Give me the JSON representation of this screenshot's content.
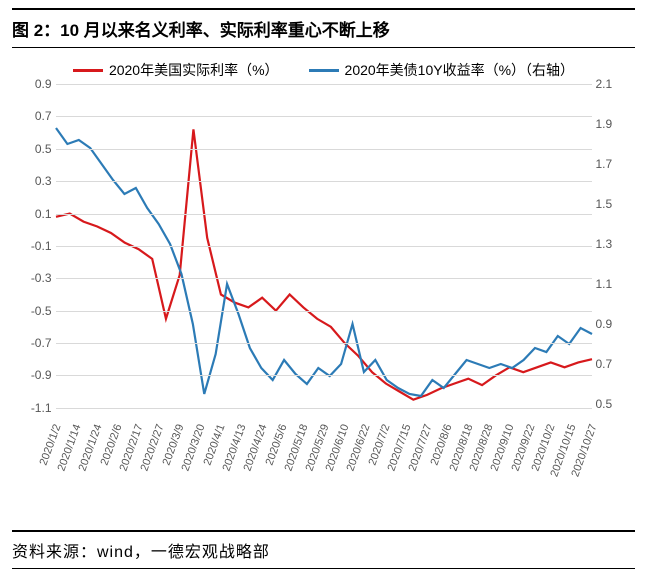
{
  "title": "图 2：10 月以来名义利率、实际利率重心不断上移",
  "source": "资料来源：wind，一德宏观战略部",
  "legend": {
    "series1": {
      "label": "2020年美国实际利率（%）",
      "color": "#d7191c"
    },
    "series2": {
      "label": "2020年美债10Y收益率（%）（右轴）",
      "color": "#2c7bb6"
    }
  },
  "chart": {
    "type": "line",
    "background_color": "#ffffff",
    "grid_color": "#d9d9d9",
    "line_width": 2.2,
    "title_fontsize": 17,
    "label_fontsize": 12,
    "xlabel_rotation": -70,
    "y_left": {
      "min": -1.2,
      "max": 0.9,
      "ticks": [
        -1.1,
        -0.9,
        -0.7,
        -0.5,
        -0.3,
        -0.1,
        0.1,
        0.3,
        0.5,
        0.7,
        0.9
      ]
    },
    "y_right": {
      "min": 0.4,
      "max": 2.1,
      "ticks": [
        0.5,
        0.7,
        0.9,
        1.1,
        1.3,
        1.5,
        1.7,
        1.9,
        2.1
      ]
    },
    "x_labels": [
      "2020/1/2",
      "2020/1/14",
      "2020/1/24",
      "2020/2/6",
      "2020/2/17",
      "2020/2/27",
      "2020/3/9",
      "2020/3/20",
      "2020/4/1",
      "2020/4/13",
      "2020/4/24",
      "2020/5/6",
      "2020/5/18",
      "2020/5/29",
      "2020/6/10",
      "2020/6/22",
      "2020/7/2",
      "2020/7/15",
      "2020/7/27",
      "2020/8/6",
      "2020/8/18",
      "2020/8/28",
      "2020/9/10",
      "2020/9/22",
      "2020/10/2",
      "2020/10/15",
      "2020/10/27"
    ],
    "series1_data": [
      0.08,
      0.1,
      0.05,
      0.02,
      -0.02,
      -0.08,
      -0.12,
      -0.18,
      -0.55,
      -0.28,
      0.62,
      -0.05,
      -0.4,
      -0.45,
      -0.48,
      -0.42,
      -0.5,
      -0.4,
      -0.48,
      -0.55,
      -0.6,
      -0.7,
      -0.78,
      -0.88,
      -0.95,
      -1.0,
      -1.05,
      -1.02,
      -0.98,
      -0.95,
      -0.92,
      -0.96,
      -0.9,
      -0.85,
      -0.88,
      -0.85,
      -0.82,
      -0.85,
      -0.82,
      -0.8
    ],
    "series2_data": [
      1.88,
      1.8,
      1.82,
      1.78,
      1.7,
      1.62,
      1.55,
      1.58,
      1.48,
      1.4,
      1.3,
      1.15,
      0.9,
      0.55,
      0.75,
      1.1,
      0.95,
      0.78,
      0.68,
      0.62,
      0.72,
      0.65,
      0.6,
      0.68,
      0.64,
      0.7,
      0.9,
      0.66,
      0.72,
      0.62,
      0.58,
      0.55,
      0.54,
      0.62,
      0.58,
      0.65,
      0.72,
      0.7,
      0.68,
      0.7,
      0.68,
      0.72,
      0.78,
      0.76,
      0.84,
      0.8,
      0.88,
      0.85
    ]
  }
}
